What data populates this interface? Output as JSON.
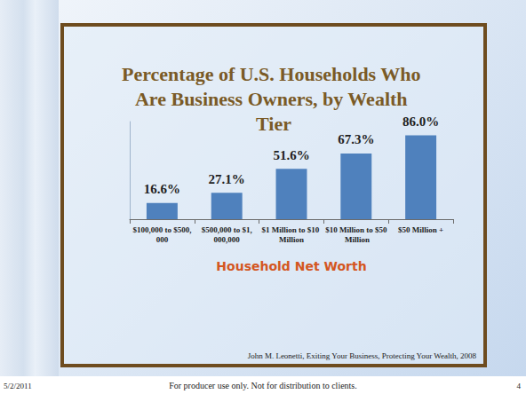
{
  "chart_data": {
    "type": "bar",
    "title": "Percentage of U.S. Households Who Are Business Owners, by Wealth Tier",
    "x_label": "Household Net Worth",
    "categories": [
      "$100,000 to $500,000",
      "$500,000 to $1,000,000",
      "$1 Million to $10 Million",
      "$10 Million to $50 Million",
      "$50 Million +"
    ],
    "values": [
      16.6,
      27.1,
      51.6,
      67.3,
      86.0
    ],
    "value_labels": [
      "16.6%",
      "27.1%",
      "51.6%",
      "67.3%",
      "86.0%"
    ],
    "data_labels": true,
    "color": "#4f81bd",
    "ylim": [
      0,
      100
    ],
    "tick_labels": "x",
    "grid": false,
    "source": "John M. Leonetti, Exiting Your Business, Protecting Your Wealth, 2008"
  },
  "footer": {
    "date": "5/2/2011",
    "note": "For producer use only.  Not for distribution to clients.",
    "page": "4"
  }
}
